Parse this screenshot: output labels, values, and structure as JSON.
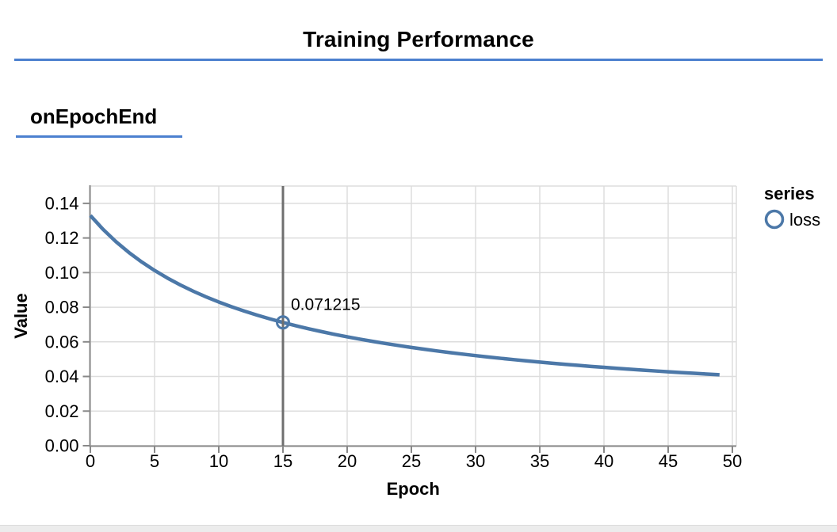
{
  "page": {
    "title": "Training Performance",
    "accent_color": "#4c80cf",
    "background": "#ffffff"
  },
  "surface": {
    "label": "onEpochEnd"
  },
  "chart_data": {
    "type": "line",
    "title": "",
    "xlabel": "Epoch",
    "ylabel": "Value",
    "xlim": [
      0,
      50.4
    ],
    "ylim": [
      0,
      0.15
    ],
    "xticks": [
      0,
      5,
      10,
      15,
      20,
      25,
      30,
      35,
      40,
      45,
      50
    ],
    "yticks": [
      0,
      0.02,
      0.04,
      0.06,
      0.08,
      0.1,
      0.12,
      0.14
    ],
    "ytick_labels": [
      "0.00",
      "0.02",
      "0.04",
      "0.06",
      "0.08",
      "0.10",
      "0.12",
      "0.14"
    ],
    "grid": true,
    "grid_color": "#dddddd",
    "axis_color": "#888888",
    "legend": {
      "position": "right",
      "title": "series",
      "entries": [
        {
          "label": "loss",
          "color": "#4c78a8",
          "marker": "open-circle"
        }
      ]
    },
    "series": [
      {
        "name": "loss",
        "color": "#4c78a8",
        "x": [
          0,
          1,
          2,
          3,
          4,
          5,
          6,
          7,
          8,
          9,
          10,
          11,
          12,
          13,
          14,
          15,
          16,
          17,
          18,
          19,
          20,
          21,
          22,
          23,
          24,
          25,
          26,
          27,
          28,
          29,
          30,
          31,
          32,
          33,
          34,
          35,
          36,
          37,
          38,
          39,
          40,
          41,
          42,
          43,
          44,
          45,
          46,
          47,
          48,
          49
        ],
        "values": [
          0.133,
          0.12489,
          0.11783,
          0.11163,
          0.10614,
          0.10124,
          0.09685,
          0.09289,
          0.08929,
          0.08602,
          0.08302,
          0.08027,
          0.07773,
          0.07539,
          0.07322,
          0.071215,
          0.06931,
          0.06755,
          0.06591,
          0.06436,
          0.06291,
          0.06154,
          0.06025,
          0.05902,
          0.05787,
          0.05677,
          0.05573,
          0.05474,
          0.0538,
          0.0529,
          0.05205,
          0.05123,
          0.05045,
          0.0497,
          0.04898,
          0.0483,
          0.04764,
          0.04701,
          0.0464,
          0.04581,
          0.04525,
          0.04471,
          0.04418,
          0.04368,
          0.04319,
          0.04272,
          0.04227,
          0.04183,
          0.0414,
          0.04099
        ]
      }
    ],
    "highlight": {
      "epoch": 15,
      "value": 0.071215,
      "label": "0.071215",
      "crosshair_color": "#6f6f6f"
    }
  }
}
